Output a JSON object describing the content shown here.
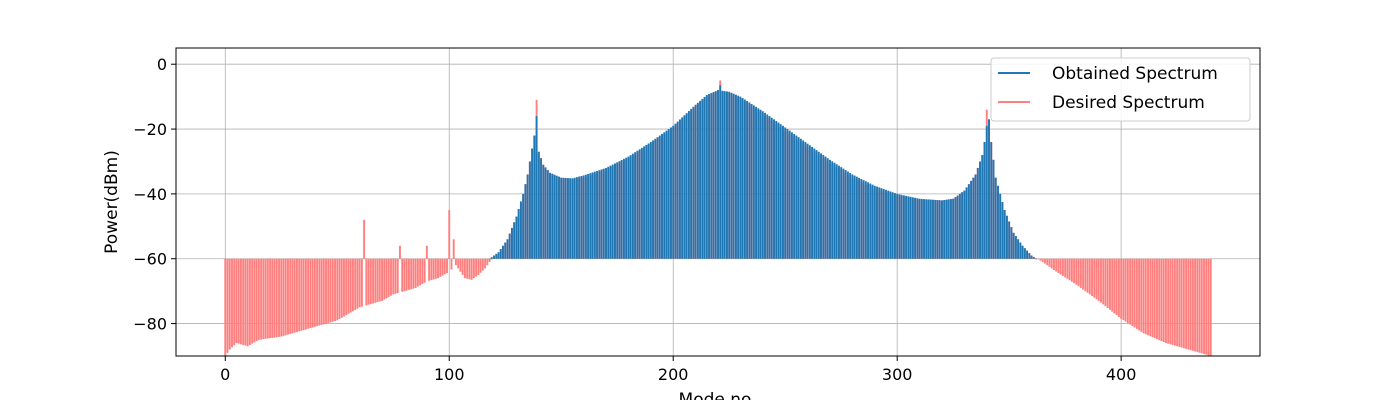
{
  "chart_data": {
    "type": "bar",
    "title": "",
    "xlabel": "Mode no",
    "ylabel": "Power(dBm)",
    "xlim": [
      -22,
      462
    ],
    "ylim": [
      -90,
      5
    ],
    "bar_baseline": -60,
    "x_ticks": [
      0,
      100,
      200,
      300,
      400
    ],
    "y_ticks": [
      0,
      -20,
      -40,
      -60,
      -80
    ],
    "x_tick_labels": [
      "0",
      "100",
      "200",
      "300",
      "400"
    ],
    "y_tick_labels": [
      "0",
      "−20",
      "−40",
      "−60",
      "−80"
    ],
    "grid": true,
    "legend": {
      "position": "top-right",
      "entries": [
        {
          "name": "Obtained Spectrum",
          "color": "#1f77b4"
        },
        {
          "name": "Desired Spectrum",
          "color": "#ff7f7f"
        }
      ]
    },
    "mode_range": [
      0,
      440
    ],
    "series": [
      {
        "name": "Obtained Spectrum",
        "color": "#1f77b4",
        "x_range": [
          118,
          362
        ],
        "anchors": [
          [
            118,
            -60
          ],
          [
            122,
            -58
          ],
          [
            126,
            -54
          ],
          [
            130,
            -47
          ],
          [
            133,
            -40
          ],
          [
            135,
            -34
          ],
          [
            137,
            -26
          ],
          [
            138,
            -22
          ],
          [
            139,
            -16
          ],
          [
            140,
            -27
          ],
          [
            142,
            -31
          ],
          [
            145,
            -33.5
          ],
          [
            150,
            -35
          ],
          [
            155,
            -35.2
          ],
          [
            160,
            -34.3
          ],
          [
            170,
            -32
          ],
          [
            180,
            -28.5
          ],
          [
            190,
            -24
          ],
          [
            200,
            -19
          ],
          [
            210,
            -12.5
          ],
          [
            215,
            -9.5
          ],
          [
            220,
            -8
          ],
          [
            225,
            -8.5
          ],
          [
            230,
            -10
          ],
          [
            240,
            -14.5
          ],
          [
            250,
            -19.5
          ],
          [
            260,
            -24.5
          ],
          [
            270,
            -29.5
          ],
          [
            280,
            -34
          ],
          [
            290,
            -37.5
          ],
          [
            300,
            -40
          ],
          [
            310,
            -41.5
          ],
          [
            320,
            -42
          ],
          [
            325,
            -41.5
          ],
          [
            330,
            -39
          ],
          [
            335,
            -34
          ],
          [
            338,
            -28
          ],
          [
            340,
            -20
          ],
          [
            341,
            -17
          ],
          [
            342,
            -24
          ],
          [
            344,
            -35
          ],
          [
            348,
            -45
          ],
          [
            352,
            -52
          ],
          [
            356,
            -56
          ],
          [
            360,
            -59
          ],
          [
            362,
            -60
          ]
        ],
        "peaks": [
          [
            139,
            -16
          ],
          [
            221,
            -6.5
          ],
          [
            340,
            -19
          ]
        ]
      },
      {
        "name": "Desired Spectrum",
        "color": "#ff7f7f",
        "x_range": [
          0,
          440
        ],
        "anchors": [
          [
            0,
            -90
          ],
          [
            2,
            -88
          ],
          [
            5,
            -86
          ],
          [
            10,
            -87
          ],
          [
            15,
            -85
          ],
          [
            20,
            -84.5
          ],
          [
            25,
            -84
          ],
          [
            30,
            -83
          ],
          [
            35,
            -82
          ],
          [
            40,
            -81
          ],
          [
            45,
            -80
          ],
          [
            50,
            -79
          ],
          [
            55,
            -77
          ],
          [
            60,
            -75
          ],
          [
            65,
            -74
          ],
          [
            70,
            -73
          ],
          [
            75,
            -71
          ],
          [
            80,
            -70
          ],
          [
            85,
            -69
          ],
          [
            90,
            -67
          ],
          [
            95,
            -66
          ],
          [
            100,
            -64
          ],
          [
            103,
            -62
          ],
          [
            107,
            -66
          ],
          [
            110,
            -66.5
          ],
          [
            113,
            -65
          ],
          [
            116,
            -63
          ],
          [
            118,
            -61
          ],
          [
            122,
            -58
          ],
          [
            126,
            -54
          ],
          [
            130,
            -47
          ],
          [
            133,
            -40
          ],
          [
            135,
            -34
          ],
          [
            137,
            -26
          ],
          [
            138,
            -22
          ],
          [
            139,
            -16
          ],
          [
            140,
            -27
          ],
          [
            142,
            -31
          ],
          [
            145,
            -33.5
          ],
          [
            150,
            -35
          ],
          [
            155,
            -35.5
          ],
          [
            160,
            -35
          ],
          [
            170,
            -32.5
          ],
          [
            180,
            -29
          ],
          [
            190,
            -24.5
          ],
          [
            200,
            -19.5
          ],
          [
            210,
            -13
          ],
          [
            215,
            -10
          ],
          [
            220,
            -8
          ],
          [
            225,
            -8.8
          ],
          [
            230,
            -10.5
          ],
          [
            240,
            -15.5
          ],
          [
            250,
            -20.5
          ],
          [
            260,
            -25.5
          ],
          [
            270,
            -30.5
          ],
          [
            280,
            -35
          ],
          [
            290,
            -38.5
          ],
          [
            300,
            -40.5
          ],
          [
            310,
            -41.8
          ],
          [
            320,
            -42
          ],
          [
            325,
            -41.5
          ],
          [
            330,
            -39
          ],
          [
            335,
            -34
          ],
          [
            338,
            -28
          ],
          [
            340,
            -20
          ],
          [
            341,
            -17
          ],
          [
            342,
            -24
          ],
          [
            344,
            -35
          ],
          [
            348,
            -45
          ],
          [
            352,
            -52
          ],
          [
            356,
            -56
          ],
          [
            360,
            -59
          ],
          [
            365,
            -61
          ],
          [
            370,
            -63.5
          ],
          [
            380,
            -68
          ],
          [
            390,
            -73
          ],
          [
            400,
            -78.5
          ],
          [
            410,
            -83
          ],
          [
            420,
            -86
          ],
          [
            425,
            -87
          ],
          [
            430,
            -88
          ],
          [
            435,
            -89
          ],
          [
            440,
            -90
          ]
        ],
        "peaks": [
          [
            62,
            -48
          ],
          [
            78,
            -56
          ],
          [
            90,
            -56
          ],
          [
            100,
            -45
          ],
          [
            102,
            -54
          ],
          [
            139,
            -11
          ],
          [
            221,
            -5
          ],
          [
            340,
            -14
          ]
        ]
      }
    ]
  }
}
